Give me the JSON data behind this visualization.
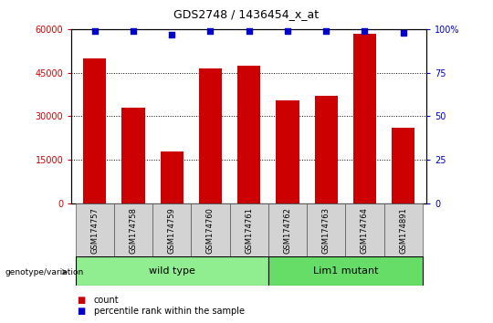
{
  "title": "GDS2748 / 1436454_x_at",
  "samples": [
    "GSM174757",
    "GSM174758",
    "GSM174759",
    "GSM174760",
    "GSM174761",
    "GSM174762",
    "GSM174763",
    "GSM174764",
    "GSM174891"
  ],
  "counts": [
    50000,
    33000,
    18000,
    46500,
    47500,
    35500,
    37000,
    58500,
    26000
  ],
  "percentiles": [
    99,
    99,
    97,
    99,
    99,
    99,
    99,
    99,
    98
  ],
  "bar_color": "#cc0000",
  "dot_color": "#0000cc",
  "ylim_left": [
    0,
    60000
  ],
  "ylim_right": [
    0,
    100
  ],
  "yticks_left": [
    0,
    15000,
    30000,
    45000,
    60000
  ],
  "ytick_labels_left": [
    "0",
    "15000",
    "30000",
    "45000",
    "60000"
  ],
  "yticks_right": [
    0,
    25,
    50,
    75,
    100
  ],
  "ytick_labels_right": [
    "0",
    "25",
    "50",
    "75",
    "100%"
  ],
  "groups": [
    {
      "label": "wild type",
      "start": 0,
      "end": 4,
      "color": "#90ee90"
    },
    {
      "label": "Lim1 mutant",
      "start": 5,
      "end": 8,
      "color": "#66dd66"
    }
  ],
  "genotype_label": "genotype/variation",
  "legend_count_label": "count",
  "legend_percentile_label": "percentile rank within the sample",
  "bg_color": "#ffffff",
  "plot_bg_color": "#ffffff",
  "tick_label_area_color": "#d3d3d3",
  "left_tick_color": "#cc0000",
  "right_tick_color": "#0000cc"
}
